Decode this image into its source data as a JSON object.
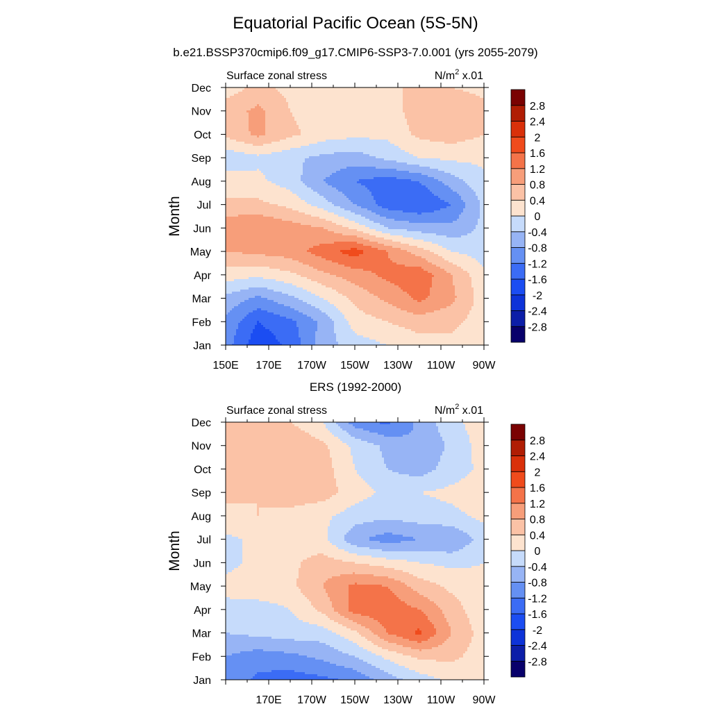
{
  "header": {
    "title": "Equatorial Pacific Ocean (5S-5N)",
    "subtitle": "b.e21.BSSP370cmip6.f09_g17.CMIP6-SSP3-7.0.001 (yrs 2055-2079)",
    "second_title": "ERS (1992-2000)"
  },
  "chart_data": [
    {
      "type": "heatmap",
      "title": "Surface zonal stress",
      "units": "N/m",
      "units_sup": "2",
      "units_suffix": " x.01",
      "ylabel": "Month",
      "x_ticks": [
        "150E",
        "170E",
        "170W",
        "150W",
        "130W",
        "110W",
        "90W"
      ],
      "x_tick_values": [
        150,
        170,
        190,
        210,
        230,
        250,
        270
      ],
      "xlim": [
        150,
        270
      ],
      "months": [
        "Jan",
        "Feb",
        "Mar",
        "Apr",
        "May",
        "Jun",
        "Jul",
        "Aug",
        "Sep",
        "Oct",
        "Nov",
        "Dec"
      ],
      "x": [
        150,
        165,
        180,
        195,
        210,
        225,
        240,
        255,
        270
      ],
      "z": [
        [
          -1.0,
          -1.9,
          -1.5,
          -0.6,
          -0.2,
          0.0,
          0.2,
          0.3,
          0.1
        ],
        [
          -0.9,
          -1.6,
          -1.3,
          -0.7,
          0.2,
          0.4,
          0.6,
          0.5,
          0.2
        ],
        [
          -0.5,
          -0.9,
          -0.5,
          0.0,
          0.5,
          0.9,
          1.3,
          0.9,
          0.2
        ],
        [
          0.2,
          0.1,
          0.3,
          0.7,
          1.0,
          1.3,
          1.5,
          0.8,
          0.1
        ],
        [
          0.8,
          0.9,
          1.0,
          1.4,
          1.8,
          1.2,
          0.6,
          0.0,
          -0.2
        ],
        [
          1.1,
          1.2,
          1.0,
          0.8,
          0.3,
          -0.4,
          -0.6,
          -0.7,
          -0.3
        ],
        [
          0.5,
          0.5,
          0.3,
          -0.2,
          -0.8,
          -1.4,
          -1.6,
          -1.2,
          -0.3
        ],
        [
          0.2,
          0.1,
          -0.2,
          -0.8,
          -1.2,
          -1.4,
          -1.2,
          -0.6,
          -0.1
        ],
        [
          -0.3,
          -0.1,
          -0.3,
          -0.5,
          -0.6,
          -0.3,
          0.0,
          0.1,
          0.1
        ],
        [
          0.5,
          0.9,
          0.5,
          0.2,
          0.1,
          0.1,
          0.5,
          0.6,
          0.4
        ],
        [
          0.6,
          0.9,
          0.4,
          0.2,
          0.2,
          0.2,
          0.6,
          0.7,
          0.5
        ],
        [
          0.2,
          0.5,
          0.3,
          0.1,
          0.2,
          0.3,
          0.5,
          0.4,
          0.3
        ]
      ],
      "levels": [
        "2.8",
        "2.4",
        "2",
        "1.6",
        "1.2",
        "0.8",
        "0.4",
        "0",
        "-0.4",
        "-0.8",
        "-1.2",
        "-1.6",
        "-2",
        "-2.4",
        "-2.8"
      ],
      "level_values": [
        -2.8,
        -2.4,
        -2.0,
        -1.6,
        -1.2,
        -0.8,
        -0.4,
        0.0,
        0.4,
        0.8,
        1.2,
        1.6,
        2.0,
        2.4,
        2.8
      ],
      "colors": [
        "#08006b",
        "#0c1ea8",
        "#0d33d8",
        "#1b4df2",
        "#3b6cf5",
        "#6590f3",
        "#97b4f5",
        "#c6dbfb",
        "#fde3cf",
        "#fbc2a6",
        "#f79e7a",
        "#f47349",
        "#f04b1c",
        "#d9300a",
        "#b01d04",
        "#7a0202"
      ]
    },
    {
      "type": "heatmap",
      "title": "Surface zonal stress",
      "units": "N/m",
      "units_sup": "2",
      "units_suffix": " x.01",
      "ylabel": "Month",
      "x_ticks": [
        "170E",
        "170W",
        "150W",
        "130W",
        "110W",
        "90W"
      ],
      "x_tick_values": [
        170,
        190,
        210,
        230,
        250,
        270
      ],
      "xlim": [
        150,
        270
      ],
      "months": [
        "Jan",
        "Feb",
        "Mar",
        "Apr",
        "May",
        "Jun",
        "Jul",
        "Aug",
        "Sep",
        "Oct",
        "Nov",
        "Dec"
      ],
      "x": [
        150,
        165,
        180,
        195,
        210,
        225,
        240,
        255,
        270
      ],
      "z": [
        [
          -0.9,
          -1.3,
          -1.4,
          -1.3,
          -1.1,
          -0.6,
          -0.2,
          0.1,
          0.2
        ],
        [
          -0.8,
          -1.0,
          -0.9,
          -0.7,
          -0.4,
          0.1,
          0.5,
          0.5,
          0.2
        ],
        [
          -0.4,
          -0.3,
          -0.2,
          -0.2,
          0.3,
          1.2,
          1.7,
          0.8,
          0.2
        ],
        [
          -0.2,
          -0.2,
          0.0,
          0.5,
          1.4,
          1.5,
          1.2,
          0.6,
          0.1
        ],
        [
          0.2,
          0.3,
          0.3,
          0.8,
          1.3,
          1.2,
          0.6,
          0.3,
          0.1
        ],
        [
          -0.2,
          0.2,
          0.3,
          0.6,
          0.4,
          0.2,
          0.0,
          -0.1,
          0.0
        ],
        [
          -0.1,
          0.1,
          0.2,
          0.1,
          -0.7,
          -1.0,
          -0.8,
          -0.8,
          -0.2
        ],
        [
          0.3,
          0.4,
          0.3,
          0.1,
          -0.2,
          -0.3,
          -0.2,
          -0.1,
          0.1
        ],
        [
          0.5,
          0.4,
          0.6,
          0.6,
          0.2,
          -0.1,
          0.0,
          0.1,
          0.2
        ],
        [
          0.6,
          0.6,
          0.7,
          0.6,
          0.0,
          -0.4,
          -0.6,
          -0.2,
          0.1
        ],
        [
          0.6,
          0.7,
          0.8,
          0.5,
          -0.1,
          -0.5,
          -0.8,
          -0.3,
          0.2
        ],
        [
          0.5,
          0.5,
          0.4,
          0.0,
          -1.0,
          -1.3,
          -0.7,
          -0.1,
          0.2
        ]
      ],
      "levels": [
        "2.8",
        "2.4",
        "2",
        "1.6",
        "1.2",
        "0.8",
        "0.4",
        "0",
        "-0.4",
        "-0.8",
        "-1.2",
        "-1.6",
        "-2",
        "-2.4",
        "-2.8"
      ],
      "level_values": [
        -2.8,
        -2.4,
        -2.0,
        -1.6,
        -1.2,
        -0.8,
        -0.4,
        0.0,
        0.4,
        0.8,
        1.2,
        1.6,
        2.0,
        2.4,
        2.8
      ],
      "colors": [
        "#08006b",
        "#0c1ea8",
        "#0d33d8",
        "#1b4df2",
        "#3b6cf5",
        "#6590f3",
        "#97b4f5",
        "#c6dbfb",
        "#fde3cf",
        "#fbc2a6",
        "#f79e7a",
        "#f47349",
        "#f04b1c",
        "#d9300a",
        "#b01d04",
        "#7a0202"
      ]
    }
  ]
}
